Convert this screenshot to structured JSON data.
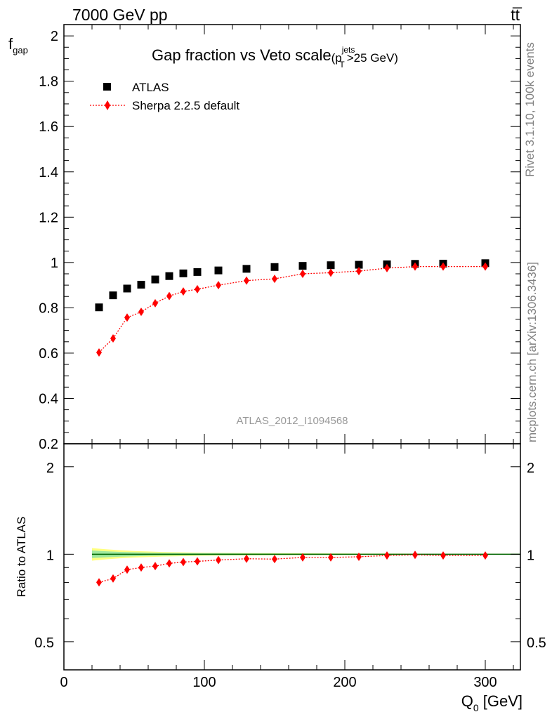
{
  "header": {
    "left": "7000 GeV pp",
    "right": "tt̅"
  },
  "side_labels": {
    "rivet": "Rivet 3.1.10,  100k events",
    "mcplots": "mcplots.cern.ch [arXiv:1306.3436]"
  },
  "chart_data": [
    {
      "type": "scatter",
      "title": "Gap fraction vs Veto scale",
      "title_suffix": {
        "open": "(p",
        "sub": "T",
        "sup": "jets",
        "close": ">25 GeV)"
      },
      "ylabel": {
        "main": "f",
        "sub": "gap"
      },
      "watermark": "ATLAS_2012_I1094568",
      "xlim": [
        0,
        325
      ],
      "ylim": [
        0.2,
        2.05
      ],
      "yticks": [
        "0.2",
        "0.4",
        "0.6",
        "0.8",
        "1",
        "1.2",
        "1.4",
        "1.6",
        "1.8",
        "2"
      ],
      "legend_position": "top-left",
      "x": [
        25,
        35,
        45,
        55,
        65,
        75,
        85,
        95,
        110,
        130,
        150,
        170,
        190,
        210,
        230,
        250,
        270,
        300
      ],
      "series": [
        {
          "name": "ATLAS",
          "marker": "square",
          "color": "#000000",
          "values": [
            0.802,
            0.855,
            0.885,
            0.902,
            0.925,
            0.94,
            0.952,
            0.958,
            0.965,
            0.972,
            0.98,
            0.985,
            0.988,
            0.99,
            0.992,
            0.994,
            0.995,
            0.997
          ]
        },
        {
          "name": "Sherpa 2.2.5 default",
          "marker": "diamond",
          "line": "dotted",
          "color": "#ff0000",
          "values": [
            0.603,
            0.665,
            0.757,
            0.782,
            0.82,
            0.852,
            0.872,
            0.882,
            0.9,
            0.92,
            0.928,
            0.95,
            0.955,
            0.962,
            0.975,
            0.982,
            0.982,
            0.982
          ]
        }
      ]
    },
    {
      "type": "scatter",
      "ylabel": "Ratio to ATLAS",
      "xlabel": {
        "main": "Q",
        "sub": "0",
        "unit": " [GeV]"
      },
      "xlim": [
        0,
        325
      ],
      "ylim": [
        0.4,
        2.4
      ],
      "log_y": true,
      "yticks": [
        "0.5",
        "1",
        "2"
      ],
      "xticks": [
        "0",
        "100",
        "200",
        "300"
      ],
      "x": [
        25,
        35,
        45,
        55,
        65,
        75,
        85,
        95,
        110,
        130,
        150,
        170,
        190,
        210,
        230,
        250,
        270,
        300
      ],
      "band_colors": {
        "outer": "#ffff80",
        "inner": "#9ee89e",
        "reference": "#006400"
      },
      "band": {
        "x": [
          20,
          30,
          40,
          50,
          60,
          70,
          80,
          90,
          100,
          120,
          140,
          160,
          180,
          200,
          220,
          240,
          260,
          280,
          325
        ],
        "outer": [
          0.05,
          0.04,
          0.032,
          0.026,
          0.022,
          0.018,
          0.016,
          0.014,
          0.012,
          0.01,
          0.009,
          0.008,
          0.007,
          0.006,
          0.005,
          0.005,
          0.004,
          0.004,
          0.004
        ],
        "inner": [
          0.03,
          0.024,
          0.019,
          0.016,
          0.013,
          0.011,
          0.01,
          0.009,
          0.008,
          0.007,
          0.006,
          0.005,
          0.005,
          0.004,
          0.004,
          0.003,
          0.003,
          0.003,
          0.003
        ]
      },
      "series": [
        {
          "name": "Sherpa 2.2.5 default",
          "marker": "diamond",
          "line": "dotted",
          "color": "#ff0000",
          "values": [
            0.8,
            0.825,
            0.885,
            0.9,
            0.91,
            0.93,
            0.94,
            0.945,
            0.955,
            0.965,
            0.962,
            0.975,
            0.975,
            0.98,
            0.99,
            0.995,
            0.99,
            0.99
          ]
        }
      ]
    }
  ]
}
